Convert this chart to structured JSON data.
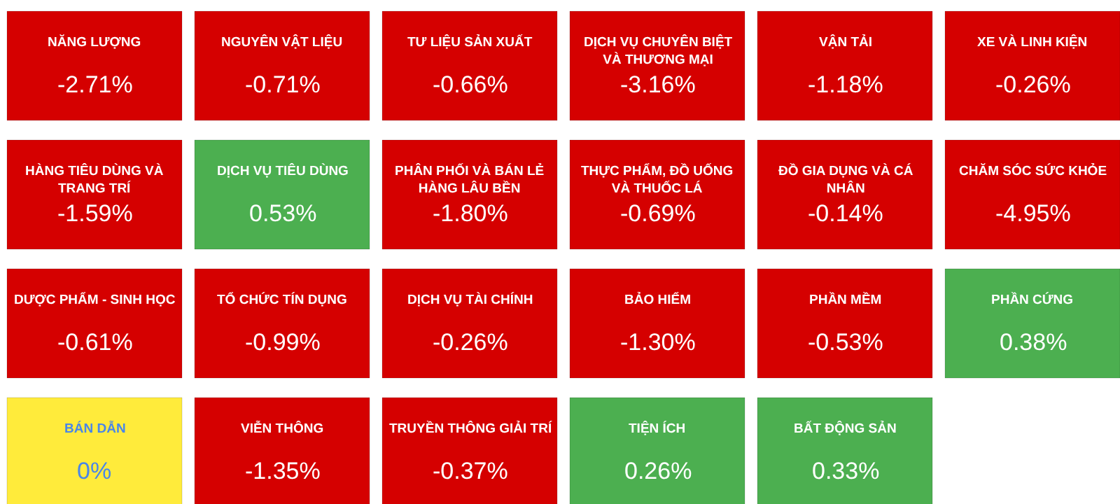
{
  "chart_data": {
    "type": "other",
    "categories": [
      "NĂNG LƯỢNG",
      "NGUYÊN VẬT LIỆU",
      "TƯ LIỆU SẢN XUẤT",
      "DỊCH VỤ CHUYÊN BIỆT VÀ THƯƠNG MẠI",
      "VẬN TẢI",
      "XE VÀ LINH KIỆN",
      "HÀNG TIÊU DÙNG VÀ TRANG TRÍ",
      "DỊCH VỤ TIÊU DÙNG",
      "PHÂN PHỐI VÀ BÁN LẺ HÀNG LÂU BỀN",
      "THỰC PHẨM, ĐỒ UỐNG VÀ THUỐC LÁ",
      "ĐỒ GIA DỤNG VÀ CÁ NHÂN",
      "CHĂM SÓC SỨC KHỎE",
      "DƯỢC PHẨM - SINH HỌC",
      "TỔ CHỨC TÍN DỤNG",
      "DỊCH VỤ TÀI CHÍNH",
      "BẢO HIỂM",
      "PHẦN MỀM",
      "PHẦN CỨNG",
      "BÁN DẪN",
      "VIỄN THÔNG",
      "TRUYỀN THÔNG GIẢI TRÍ",
      "TIỆN ÍCH",
      "BẤT ĐỘNG SẢN"
    ],
    "values": [
      -2.71,
      -0.71,
      -0.66,
      -3.16,
      -1.18,
      -0.26,
      -1.59,
      0.53,
      -1.8,
      -0.69,
      -0.14,
      -4.95,
      -0.61,
      -0.99,
      -0.26,
      -1.3,
      -0.53,
      0.38,
      0,
      -1.35,
      -0.37,
      0.26,
      0.33
    ],
    "value_labels": [
      "-2.71%",
      "-0.71%",
      "-0.66%",
      "-3.16%",
      "-1.18%",
      "-0.26%",
      "-1.59%",
      "0.53%",
      "-1.80%",
      "-0.69%",
      "-0.14%",
      "-4.95%",
      "-0.61%",
      "-0.99%",
      "-0.26%",
      "-1.30%",
      "-0.53%",
      "0.38%",
      "0%",
      "-1.35%",
      "-0.37%",
      "0.26%",
      "0.33%"
    ],
    "colors": [
      "#d50000",
      "#d50000",
      "#d50000",
      "#d50000",
      "#d50000",
      "#d50000",
      "#d50000",
      "#4caf50",
      "#d50000",
      "#d50000",
      "#d50000",
      "#d50000",
      "#d50000",
      "#d50000",
      "#d50000",
      "#d50000",
      "#d50000",
      "#4caf50",
      "#ffeb3b",
      "#d50000",
      "#d50000",
      "#4caf50",
      "#4caf50"
    ]
  }
}
